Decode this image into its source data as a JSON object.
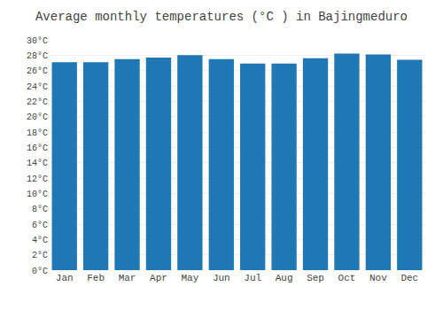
{
  "chart_data": {
    "type": "bar",
    "title": "Average monthly temperatures (°C ) in Bajingmeduro",
    "categories": [
      "Jan",
      "Feb",
      "Mar",
      "Apr",
      "May",
      "Jun",
      "Jul",
      "Aug",
      "Sep",
      "Oct",
      "Nov",
      "Dec"
    ],
    "values": [
      27.1,
      27.1,
      27.5,
      27.7,
      28.0,
      27.5,
      26.9,
      26.9,
      27.6,
      28.2,
      28.1,
      27.4
    ],
    "ylim": [
      0,
      30
    ],
    "yticks": [
      {
        "value": 0,
        "label": "0°C"
      },
      {
        "value": 2,
        "label": "2°C"
      },
      {
        "value": 4,
        "label": "4°C"
      },
      {
        "value": 6,
        "label": "6°C"
      },
      {
        "value": 8,
        "label": "8°C"
      },
      {
        "value": 10,
        "label": "10°C"
      },
      {
        "value": 12,
        "label": "12°C"
      },
      {
        "value": 14,
        "label": "14°C"
      },
      {
        "value": 16,
        "label": "16°C"
      },
      {
        "value": 18,
        "label": "18°C"
      },
      {
        "value": 20,
        "label": "20°C"
      },
      {
        "value": 22,
        "label": "22°C"
      },
      {
        "value": 24,
        "label": "24°C"
      },
      {
        "value": 26,
        "label": "26°C"
      },
      {
        "value": 28,
        "label": "28°C"
      },
      {
        "value": 30,
        "label": "30°C"
      }
    ],
    "grid": true
  }
}
